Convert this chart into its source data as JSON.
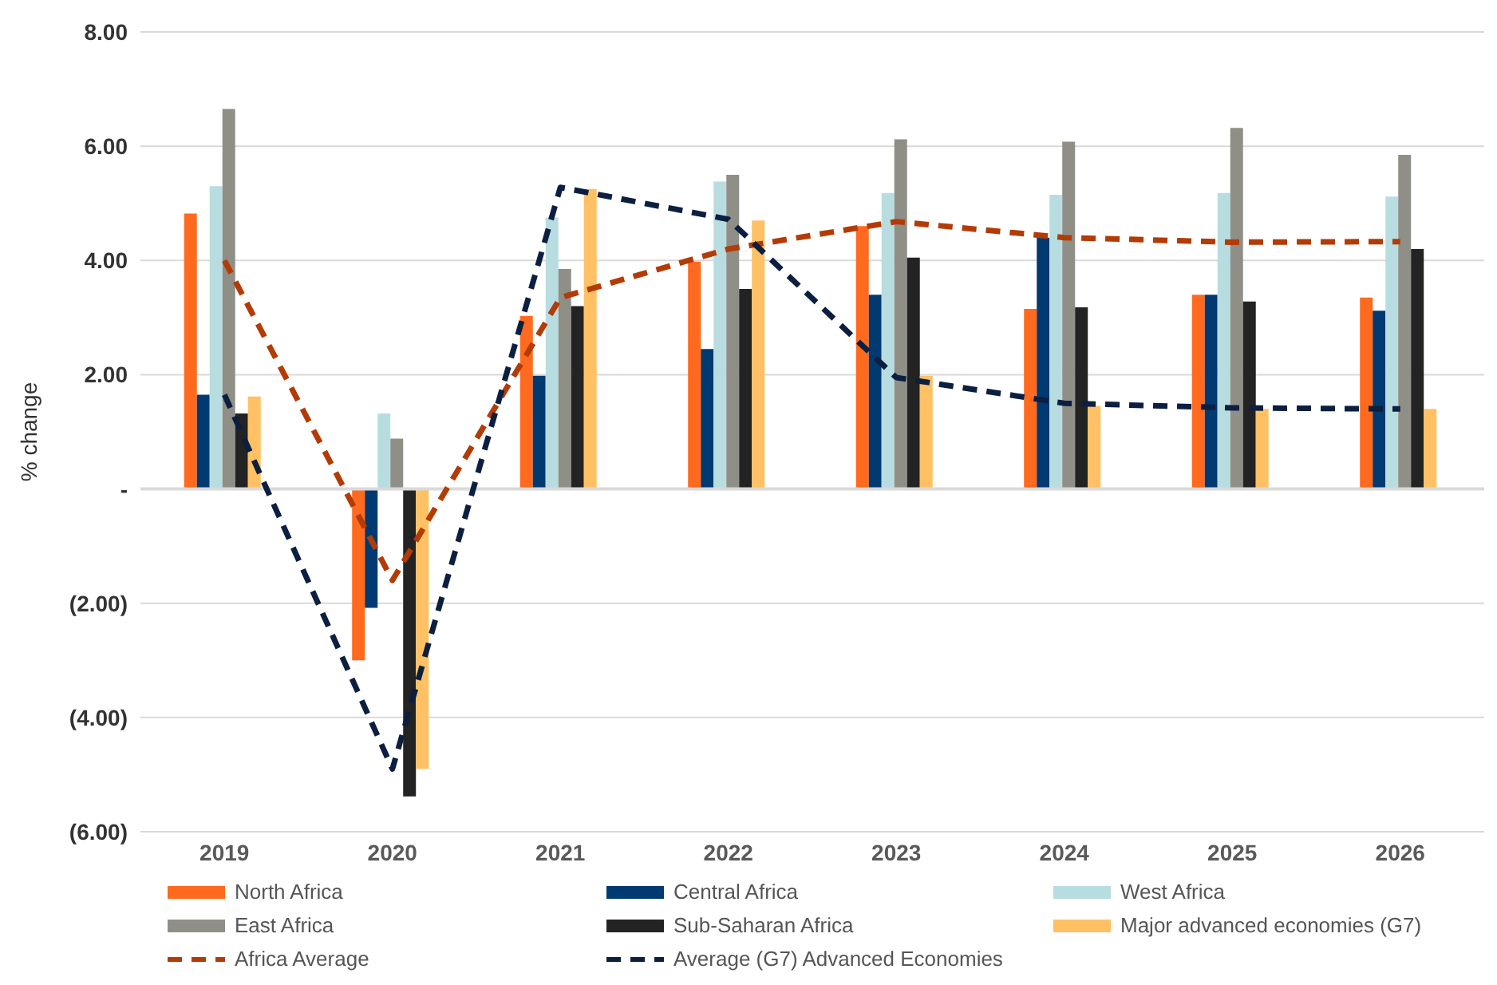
{
  "chart_data": {
    "type": "bar",
    "ylabel": "% change",
    "categories": [
      "2019",
      "2020",
      "2021",
      "2022",
      "2023",
      "2024",
      "2025",
      "2026"
    ],
    "series": [
      {
        "name": "North Africa",
        "color": "#ff6a1f",
        "values": [
          4.82,
          -3.0,
          3.03,
          3.98,
          4.6,
          3.15,
          3.4,
          3.35
        ]
      },
      {
        "name": "Central Africa",
        "color": "#003a70",
        "values": [
          1.65,
          -2.08,
          1.98,
          2.45,
          3.4,
          4.4,
          3.4,
          3.12
        ]
      },
      {
        "name": "West Africa",
        "color": "#b8dde1",
        "values": [
          5.3,
          1.32,
          4.75,
          5.38,
          5.18,
          5.15,
          5.18,
          5.12
        ]
      },
      {
        "name": "East Africa",
        "color": "#8f8f87",
        "values": [
          6.65,
          0.88,
          3.85,
          5.5,
          6.12,
          6.08,
          6.32,
          5.85
        ]
      },
      {
        "name": "Sub-Saharan Africa",
        "color": "#232323",
        "values": [
          1.32,
          -5.38,
          3.2,
          3.5,
          4.05,
          3.18,
          3.28,
          4.2
        ]
      },
      {
        "name": "Major advanced economies (G7)",
        "color": "#ffc163",
        "values": [
          1.62,
          -4.9,
          5.25,
          4.7,
          1.98,
          1.45,
          1.4,
          1.4
        ]
      },
      {
        "name": "Africa Average",
        "type": "line",
        "line_style": "dashed",
        "color": "#b33b06",
        "values": [
          4.0,
          -1.6,
          3.35,
          4.2,
          4.68,
          4.4,
          4.32,
          4.33
        ]
      },
      {
        "name": "Average (G7) Advanced Economies",
        "type": "line",
        "line_style": "dashed",
        "color": "#0c1f40",
        "values": [
          1.65,
          -4.9,
          5.28,
          4.72,
          1.95,
          1.5,
          1.42,
          1.4
        ]
      }
    ],
    "ylim": [
      -6,
      8
    ],
    "yticks": [
      {
        "value": -6,
        "label": "(6.00)"
      },
      {
        "value": -4,
        "label": "(4.00)"
      },
      {
        "value": -2,
        "label": "(2.00)"
      },
      {
        "value": 0,
        "label": "-"
      },
      {
        "value": 2,
        "label": "2.00"
      },
      {
        "value": 4,
        "label": "4.00"
      },
      {
        "value": 6,
        "label": "6.00"
      },
      {
        "value": 8,
        "label": "8.00"
      }
    ],
    "grid": "y",
    "legend": "bottom"
  }
}
